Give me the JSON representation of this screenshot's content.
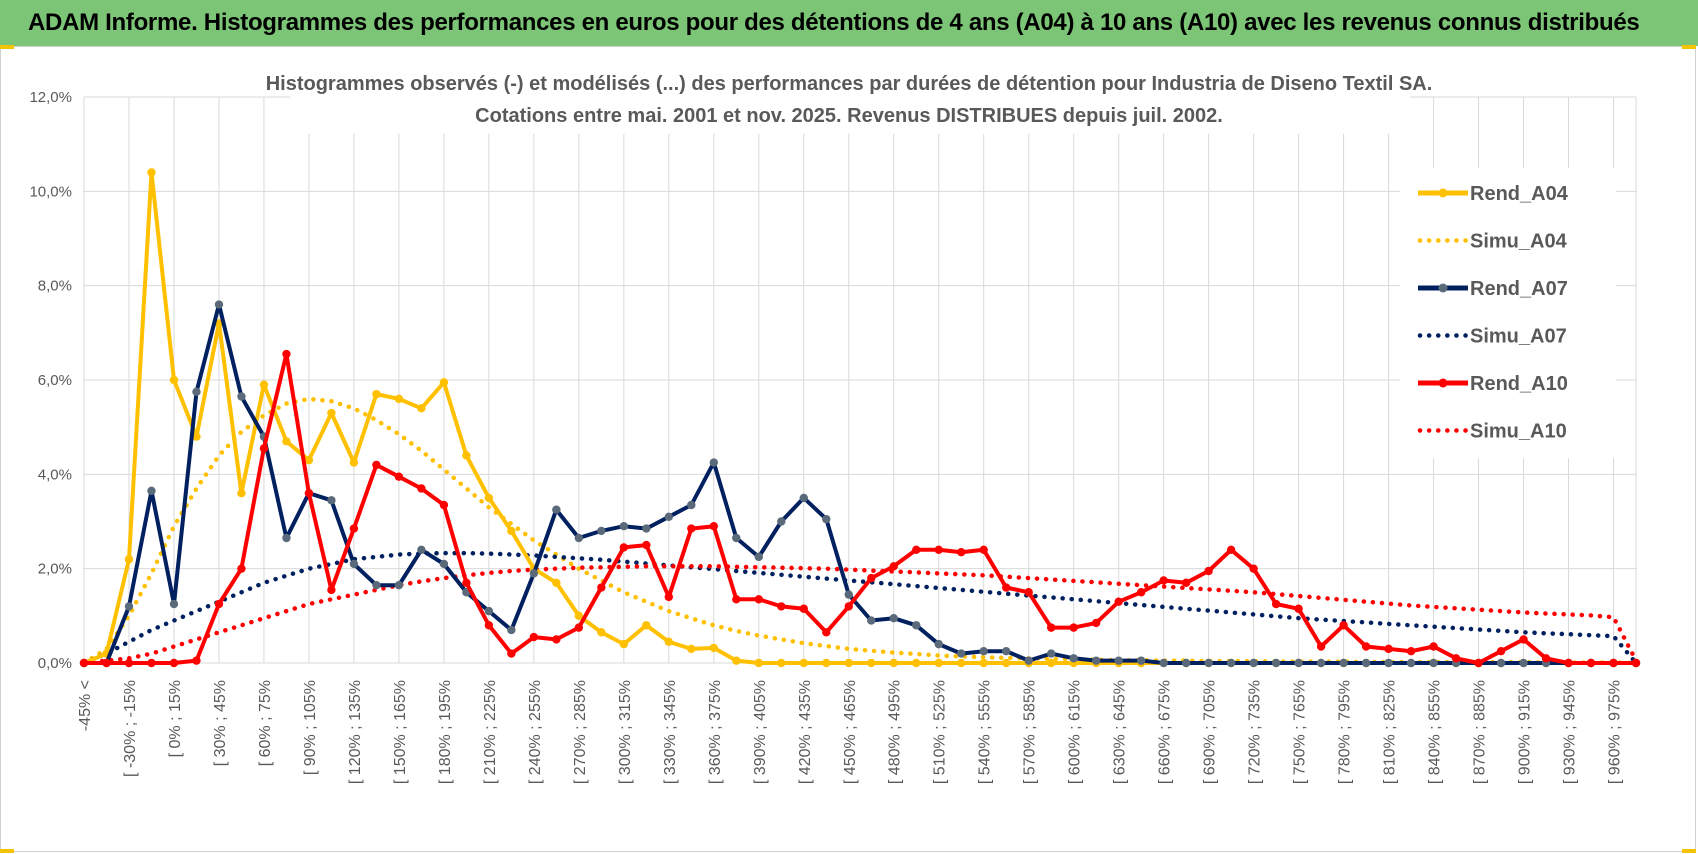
{
  "banner": {
    "title": "ADAM Informe. Histogrammes des performances en euros pour des détentions de 4 ans (A04) à 10 ans (A10) avec les revenus connus distribués"
  },
  "colors": {
    "banner_bg": "#7cc576",
    "a04": "#FFC000",
    "a07": "#002060",
    "a10": "#FF0000",
    "a07_marker": "#5A6A7A",
    "grid": "#D9D9D9"
  },
  "chart_data": {
    "type": "line",
    "title_line1": "Histogrammes observés (-) et modélisés (...) des performances par durées de détention pour Industria de Diseno Textil SA.",
    "title_line2": "Cotations entre mai. 2001 et nov. 2025. Revenus DISTRIBUES depuis juil. 2002.",
    "ylim": [
      0,
      12
    ],
    "yticks": [
      "0,0%",
      "2,0%",
      "4,0%",
      "6,0%",
      "8,0%",
      "10,0%",
      "12,0%"
    ],
    "xtick_labels": [
      "-45% <",
      "[ -30% ; -15%",
      "[ 0% ; 15%",
      "[ 30% ; 45%",
      "[ 60% ; 75%",
      "[ 90% ; 105%",
      "[ 120% ; 135%",
      "[ 150% ; 165%",
      "[ 180% ; 195%",
      "[ 210% ; 225%",
      "[ 240% ; 255%",
      "[ 270% ; 285%",
      "[ 300% ; 315%",
      "[ 330% ; 345%",
      "[ 360% ; 375%",
      "[ 390% ; 405%",
      "[ 420% ; 435%",
      "[ 450% ; 465%",
      "[ 480% ; 495%",
      "[ 510% ; 525%",
      "[ 540% ; 555%",
      "[ 570% ; 585%",
      "[ 600% ; 615%",
      "[ 630% ; 645%",
      "[ 660% ; 675%",
      "[ 690% ; 705%",
      "[ 720% ; 735%",
      "[ 750% ; 765%",
      "[ 780% ; 795%",
      "[ 810% ; 825%",
      "[ 840% ; 855%",
      "[ 870% ; 885%",
      "[ 900% ; 915%",
      "[ 930% ; 945%",
      "[ 960% ; 975%"
    ],
    "legend": [
      "Rend_A04",
      "Simu_A04",
      "Rend_A07",
      "Simu_A07",
      "Rend_A10",
      "Simu_A10"
    ],
    "legend_position": "right",
    "series": [
      {
        "name": "Rend_A04",
        "style": "solid",
        "color": "#FFC000",
        "values": [
          0,
          0.2,
          2.2,
          10.4,
          6.0,
          4.8,
          7.2,
          3.6,
          5.9,
          4.7,
          4.3,
          5.3,
          4.25,
          5.7,
          5.6,
          5.4,
          5.95,
          4.4,
          3.5,
          2.8,
          2.0,
          1.7,
          1.0,
          0.65,
          0.4,
          0.8,
          0.45,
          0.3,
          0.32,
          0.05,
          0,
          0,
          0,
          0,
          0,
          0,
          0,
          0,
          0,
          0,
          0,
          0,
          0,
          0,
          0,
          0,
          0,
          0,
          0,
          0,
          0,
          0,
          0,
          0,
          0,
          0,
          0,
          0,
          0,
          0,
          0,
          0,
          0,
          0,
          0,
          0,
          0,
          0,
          0,
          0
        ]
      },
      {
        "name": "Simu_A04",
        "style": "dotted",
        "color": "#FFC000",
        "values": [
          0,
          0.3,
          1.0,
          1.9,
          2.9,
          3.7,
          4.4,
          4.9,
          5.25,
          5.5,
          5.6,
          5.55,
          5.4,
          5.15,
          4.85,
          4.5,
          4.1,
          3.7,
          3.3,
          2.95,
          2.6,
          2.3,
          2.0,
          1.75,
          1.5,
          1.3,
          1.1,
          0.95,
          0.8,
          0.68,
          0.58,
          0.5,
          0.42,
          0.36,
          0.3,
          0.26,
          0.22,
          0.19,
          0.16,
          0.14,
          0.12,
          0.11,
          0.1,
          0.09,
          0.08,
          0.07,
          0.06,
          0.06,
          0.05,
          0.05,
          0.04,
          0.04,
          0.04,
          0.03,
          0.03,
          0.03,
          0.03,
          0.02,
          0.02,
          0.02,
          0.02,
          0.02,
          0.02,
          0.02,
          0.02,
          0.01,
          0.01,
          0.01,
          0.01,
          0
        ]
      },
      {
        "name": "Rend_A07",
        "style": "solid",
        "color": "#002060",
        "values": [
          0,
          0,
          1.2,
          3.65,
          1.25,
          5.75,
          7.6,
          5.65,
          4.8,
          2.65,
          3.6,
          3.45,
          2.1,
          1.65,
          1.65,
          2.4,
          2.1,
          1.5,
          1.1,
          0.7,
          1.9,
          3.25,
          2.65,
          2.8,
          2.9,
          2.85,
          3.1,
          3.35,
          4.25,
          2.65,
          2.25,
          3.0,
          3.5,
          3.05,
          1.45,
          0.9,
          0.95,
          0.8,
          0.4,
          0.2,
          0.25,
          0.25,
          0.05,
          0.2,
          0.1,
          0.05,
          0.05,
          0.05,
          0,
          0,
          0,
          0,
          0,
          0,
          0,
          0,
          0,
          0,
          0,
          0,
          0,
          0,
          0,
          0,
          0,
          0,
          0,
          0,
          0,
          0
        ]
      },
      {
        "name": "Simu_A07",
        "style": "dotted",
        "color": "#002060",
        "values": [
          0,
          0.2,
          0.45,
          0.7,
          0.9,
          1.1,
          1.3,
          1.5,
          1.7,
          1.85,
          2.0,
          2.1,
          2.2,
          2.25,
          2.3,
          2.32,
          2.33,
          2.33,
          2.32,
          2.3,
          2.28,
          2.25,
          2.22,
          2.19,
          2.15,
          2.11,
          2.07,
          2.03,
          1.99,
          1.95,
          1.91,
          1.87,
          1.83,
          1.79,
          1.75,
          1.71,
          1.67,
          1.63,
          1.59,
          1.55,
          1.51,
          1.47,
          1.43,
          1.39,
          1.35,
          1.31,
          1.27,
          1.23,
          1.19,
          1.15,
          1.11,
          1.07,
          1.03,
          0.99,
          0.95,
          0.92,
          0.89,
          0.86,
          0.83,
          0.8,
          0.77,
          0.74,
          0.71,
          0.68,
          0.65,
          0.63,
          0.61,
          0.59,
          0.57,
          0
        ]
      },
      {
        "name": "Rend_A10",
        "style": "solid",
        "color": "#FF0000",
        "values": [
          0,
          0,
          0,
          0,
          0,
          0.05,
          1.25,
          2.0,
          4.55,
          6.55,
          3.6,
          1.55,
          2.85,
          4.2,
          3.95,
          3.7,
          3.35,
          1.7,
          0.8,
          0.2,
          0.55,
          0.5,
          0.75,
          1.6,
          2.45,
          2.5,
          1.4,
          2.85,
          2.9,
          1.35,
          1.35,
          1.2,
          1.15,
          0.65,
          1.2,
          1.8,
          2.05,
          2.4,
          2.4,
          2.35,
          2.4,
          1.6,
          1.5,
          0.75,
          0.75,
          0.85,
          1.3,
          1.5,
          1.75,
          1.7,
          1.95,
          2.4,
          2.0,
          1.25,
          1.15,
          0.35,
          0.8,
          0.35,
          0.3,
          0.25,
          0.35,
          0.1,
          0,
          0.25,
          0.5,
          0.1,
          0,
          0,
          0,
          0
        ]
      },
      {
        "name": "Simu_A10",
        "style": "dotted",
        "color": "#FF0000",
        "values": [
          0,
          0.05,
          0.1,
          0.2,
          0.35,
          0.5,
          0.65,
          0.8,
          0.95,
          1.1,
          1.25,
          1.35,
          1.45,
          1.55,
          1.65,
          1.73,
          1.8,
          1.86,
          1.91,
          1.95,
          1.98,
          2.0,
          2.02,
          2.03,
          2.04,
          2.05,
          2.05,
          2.05,
          2.05,
          2.04,
          2.03,
          2.02,
          2.01,
          2.0,
          1.98,
          1.96,
          1.94,
          1.92,
          1.9,
          1.88,
          1.86,
          1.83,
          1.8,
          1.77,
          1.74,
          1.71,
          1.68,
          1.65,
          1.62,
          1.59,
          1.56,
          1.53,
          1.5,
          1.46,
          1.42,
          1.38,
          1.34,
          1.3,
          1.26,
          1.22,
          1.19,
          1.16,
          1.13,
          1.1,
          1.07,
          1.05,
          1.03,
          1.01,
          0.97,
          0.05
        ]
      }
    ]
  }
}
